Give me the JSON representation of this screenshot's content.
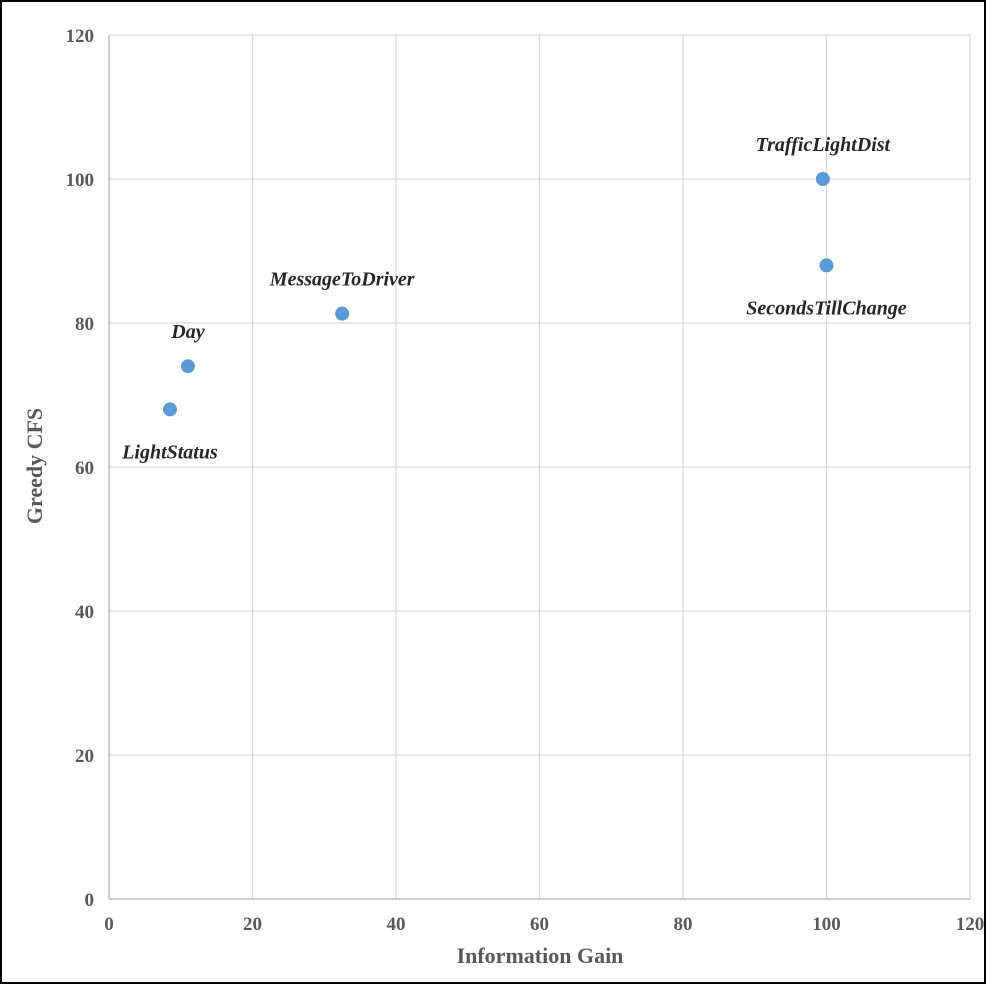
{
  "chart_data": {
    "type": "scatter",
    "title": "",
    "xlabel": "Information Gain",
    "ylabel": "Greedy CFS",
    "xlim": [
      0,
      120
    ],
    "ylim": [
      0,
      120
    ],
    "xticks": [
      0,
      20,
      40,
      60,
      80,
      100,
      120
    ],
    "yticks": [
      0,
      20,
      40,
      60,
      80,
      100,
      120
    ],
    "grid": true,
    "legend": "none",
    "marker_color": "#5B9BD5",
    "points": [
      {
        "label": "LightStatus",
        "x": 8.5,
        "y": 68,
        "label_pos": "below"
      },
      {
        "label": "Day",
        "x": 11,
        "y": 74,
        "label_pos": "above"
      },
      {
        "label": "MessageToDriver",
        "x": 32.5,
        "y": 81.3,
        "label_pos": "above"
      },
      {
        "label": "TrafficLightDist",
        "x": 99.5,
        "y": 100,
        "label_pos": "above"
      },
      {
        "label": "SecondsTillChange",
        "x": 100,
        "y": 88,
        "label_pos": "below"
      }
    ]
  }
}
